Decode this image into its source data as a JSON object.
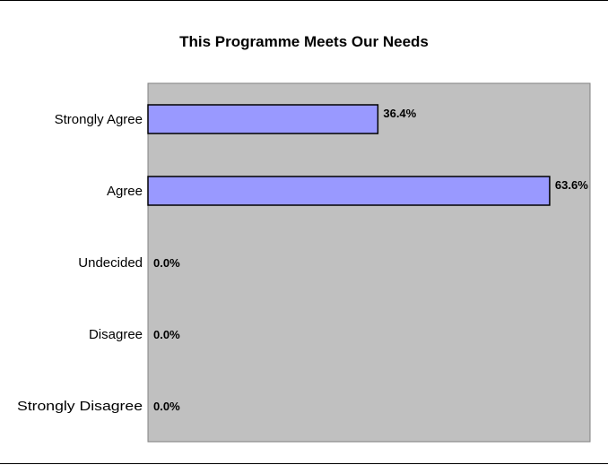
{
  "chart_data": {
    "type": "bar",
    "orientation": "horizontal",
    "title": "This Programme Meets Our Needs",
    "categories": [
      "Strongly Agree",
      "Agree",
      "Undecided",
      "Disagree",
      "Strongly Disagree"
    ],
    "values": [
      36.4,
      63.6,
      0.0,
      0.0,
      0.0
    ],
    "data_labels": [
      "36.4%",
      "63.6%",
      "0.0%",
      "0.0%",
      "0.0%"
    ],
    "xlim": [
      0,
      70
    ],
    "xlabel": "",
    "ylabel": "",
    "grid": false,
    "legend": "none",
    "colors": {
      "bar_fill": "#9999ff",
      "bar_stroke": "#000000",
      "plot_background": "#c0c0c0",
      "plot_border": "#808080"
    }
  }
}
